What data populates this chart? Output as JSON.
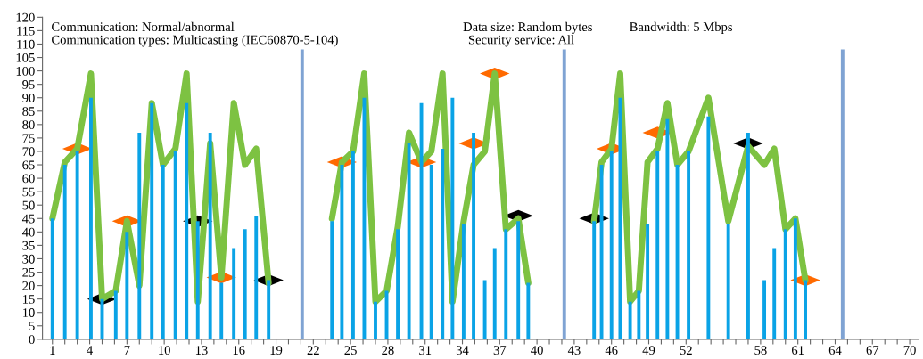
{
  "chart_data": {
    "type": "bar",
    "annotations": [
      "Communication: Normal/abnormal",
      "Communication types: Multicasting (IEC60870-5-104)",
      "Data size: Random bytes",
      "Security service: All",
      "Bandwidth: 5 Mbps"
    ],
    "series": [
      {
        "color": "#0aa3e6",
        "x": [
          1.0,
          2.0,
          3.0,
          4.1,
          5.0,
          6.1,
          7.0,
          8.0,
          9.0,
          9.9,
          10.9,
          11.8,
          12.7,
          13.7,
          14.6,
          15.6,
          16.5,
          17.4,
          18.4,
          23.5,
          24.3,
          25.2,
          26.1,
          27.0,
          27.9,
          28.8,
          29.7,
          30.7,
          31.5,
          32.4,
          33.2,
          34.1,
          34.9,
          35.8,
          36.6,
          37.5,
          38.5,
          39.3,
          44.6,
          45.2,
          46.0,
          46.7,
          47.5,
          48.2,
          48.9,
          49.7,
          50.5,
          51.3,
          52.2,
          53.8,
          55.4,
          57.0,
          58.3,
          59.1,
          60.0,
          60.8,
          61.6
        ],
        "values": [
          45,
          65,
          70,
          90,
          15,
          18,
          40,
          77,
          88,
          65,
          70,
          88,
          44,
          77,
          21,
          34,
          41,
          46,
          22,
          44,
          65,
          70,
          90,
          14,
          18,
          41,
          73,
          88,
          65,
          71,
          90,
          43,
          77,
          22,
          34,
          41,
          44,
          21,
          44,
          65,
          70,
          90,
          14,
          18,
          43,
          70,
          82,
          65,
          70,
          83,
          43,
          77,
          22,
          34,
          41,
          45,
          22
        ]
      },
      {
        "color": "#7fa3d3",
        "x": [
          21.1,
          42.2,
          64.6
        ],
        "values": [
          108,
          108,
          108
        ]
      },
      {
        "type": "line",
        "color": "#7dc242",
        "x": [
          1.0,
          2.0,
          3.0,
          4.1,
          5.0,
          6.1,
          7.0,
          8.0,
          9.0,
          9.9,
          10.9,
          11.8,
          12.7,
          13.7,
          14.6,
          15.6,
          16.5,
          17.4,
          18.4
        ],
        "values": [
          45,
          66,
          71,
          99,
          15,
          18,
          44,
          20,
          88,
          65,
          71,
          99,
          14,
          73,
          23,
          88,
          65,
          71,
          21
        ]
      },
      {
        "type": "line",
        "color": "#7dc242",
        "x": [
          23.5,
          24.3,
          25.2,
          26.1,
          27.0,
          27.9,
          28.8,
          29.7,
          30.7,
          31.5,
          32.4,
          33.2,
          34.1,
          34.9,
          35.8,
          36.6,
          37.5,
          38.5,
          39.3
        ],
        "values": [
          45,
          66,
          70,
          99,
          14,
          18,
          42,
          77,
          66,
          70,
          99,
          14,
          44,
          65,
          70,
          99,
          41,
          45,
          21
        ]
      },
      {
        "type": "line",
        "color": "#7dc242",
        "x": [
          44.6,
          45.2,
          46.0,
          46.7,
          47.5,
          48.2,
          48.9,
          49.7,
          50.5,
          51.3,
          52.2,
          53.8,
          55.4,
          57.0,
          58.3,
          59.1,
          60.0,
          60.8,
          61.6
        ],
        "values": [
          44,
          66,
          71,
          99,
          14,
          18,
          66,
          71,
          88,
          65,
          70,
          90,
          44,
          72,
          65,
          71,
          41,
          45,
          22
        ]
      },
      {
        "type": "scatter",
        "marker": "diamond",
        "color": "#ff6a00",
        "x": [
          3.0,
          7.0,
          14.6,
          24.3,
          30.7,
          34.9,
          36.6,
          46.0,
          49.7,
          61.6
        ],
        "values": [
          71,
          44,
          23,
          66,
          66,
          73,
          99,
          71,
          77,
          22
        ]
      },
      {
        "type": "scatter",
        "marker": "diamond",
        "color": "#000000",
        "x": [
          5.0,
          12.7,
          18.4,
          38.5,
          44.6,
          57.0
        ],
        "values": [
          15,
          44,
          22,
          46,
          45,
          73
        ]
      }
    ],
    "ylim": [
      0,
      120
    ],
    "yticks": [
      0,
      5,
      10,
      15,
      20,
      25,
      30,
      35,
      40,
      45,
      50,
      55,
      60,
      65,
      70,
      75,
      80,
      85,
      90,
      95,
      100,
      105,
      110,
      115,
      120
    ],
    "xlim": [
      0.2,
      70.7
    ],
    "xticks": [
      1,
      {
        "value": 2,
        "label": null
      },
      {
        "value": 3,
        "label": null
      },
      4,
      {
        "value": 5,
        "label": null
      },
      {
        "value": 6,
        "label": null
      },
      7,
      {
        "value": 8,
        "label": null
      },
      {
        "value": 9,
        "label": null
      },
      10,
      {
        "value": 11,
        "label": null
      },
      {
        "value": 12,
        "label": null
      },
      13,
      {
        "value": 14,
        "label": null
      },
      {
        "value": 15,
        "label": null
      },
      16,
      {
        "value": 17,
        "label": null
      },
      {
        "value": 18,
        "label": null
      },
      19,
      {
        "value": 20,
        "label": null
      },
      {
        "value": 21,
        "label": null
      },
      22,
      {
        "value": 23,
        "label": null
      },
      {
        "value": 24,
        "label": null
      },
      25,
      {
        "value": 26,
        "label": null
      },
      {
        "value": 27,
        "label": null
      },
      28,
      {
        "value": 29,
        "label": null
      },
      {
        "value": 30,
        "label": null
      },
      31,
      {
        "value": 32,
        "label": null
      },
      {
        "value": 33,
        "label": null
      },
      34,
      {
        "value": 35,
        "label": null
      },
      {
        "value": 36,
        "label": null
      },
      37,
      {
        "value": 38,
        "label": null
      },
      {
        "value": 39,
        "label": null
      },
      40,
      {
        "value": 41,
        "label": null
      },
      {
        "value": 42,
        "label": null
      },
      43,
      {
        "value": 44,
        "label": null
      },
      {
        "value": 45,
        "label": null
      },
      46,
      {
        "value": 47,
        "label": null
      },
      {
        "value": 48,
        "label": null
      },
      49,
      {
        "value": 50,
        "label": null
      },
      {
        "value": 51,
        "label": null
      },
      52,
      {
        "value": 53,
        "label": null
      },
      {
        "value": 54,
        "label": null
      },
      {
        "value": 55,
        "label": null
      },
      {
        "value": 56,
        "label": null
      },
      {
        "value": 57,
        "label": null
      },
      58,
      {
        "value": 59,
        "label": null
      },
      {
        "value": 60,
        "label": null
      },
      61,
      {
        "value": 62,
        "label": null
      },
      {
        "value": 63,
        "label": null
      },
      64,
      {
        "value": 65,
        "label": null
      },
      {
        "value": 66,
        "label": null
      },
      67,
      {
        "value": 68,
        "label": null
      },
      {
        "value": 69,
        "label": null
      },
      70
    ],
    "grid": false,
    "legend": false
  }
}
